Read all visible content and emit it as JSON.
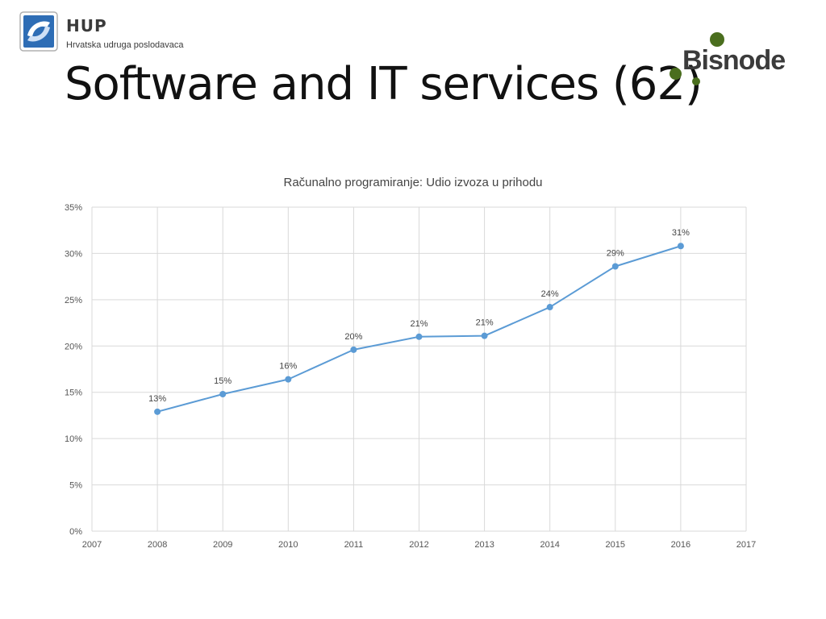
{
  "header": {
    "hup_logo": {
      "name": "HUP",
      "subtitle": "Hrvatska udruga poslodavaca"
    },
    "bisnode_logo": {
      "name": "Bisnode"
    },
    "title": "Software and IT services (62)"
  },
  "colors": {
    "line": "#5b9bd5",
    "grid": "#d9d9d9",
    "bisnode_green": "#4a6e1e",
    "hup_blue": "#2e6db5"
  },
  "chart_data": {
    "type": "line",
    "title": "Računalno programiranje: Udio izvoza u prihodu",
    "xlabel": "",
    "ylabel": "",
    "x": [
      2008,
      2009,
      2010,
      2011,
      2012,
      2013,
      2014,
      2015,
      2016
    ],
    "series": [
      {
        "values": [
          0.129,
          0.148,
          0.164,
          0.196,
          0.21,
          0.211,
          0.242,
          0.286,
          0.308
        ],
        "labels": [
          "13%",
          "15%",
          "16%",
          "20%",
          "21%",
          "21%",
          "24%",
          "29%",
          "31%"
        ]
      }
    ],
    "xlim": [
      2007,
      2017
    ],
    "ylim": [
      0,
      0.35
    ],
    "xticks": [
      "2007",
      "2008",
      "2009",
      "2010",
      "2011",
      "2012",
      "2013",
      "2014",
      "2015",
      "2016",
      "2017"
    ],
    "yticks": [
      "0%",
      "5%",
      "10%",
      "15%",
      "20%",
      "25%",
      "30%",
      "35%"
    ],
    "grid": true,
    "legend": "none"
  }
}
